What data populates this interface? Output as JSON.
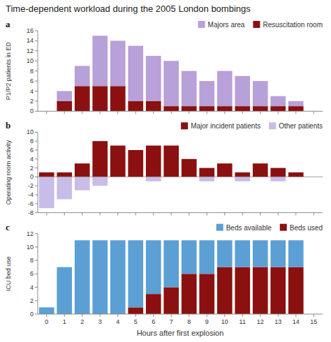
{
  "title": "Time-dependent workload during the 2005 London bombings",
  "chart_data": [
    {
      "type": "bar",
      "title": "a",
      "y_label": "P1/P2 patients in ED",
      "x": [
        1,
        2,
        3,
        4,
        5,
        6,
        7,
        8,
        9,
        10,
        11,
        12,
        13,
        14
      ],
      "series": [
        {
          "name": "Majors area",
          "color": "#b8a0d8",
          "values": [
            2,
            4,
            10,
            9,
            11,
            9,
            9,
            7,
            5,
            7,
            6,
            5,
            2,
            1
          ]
        },
        {
          "name": "Resuscitation room",
          "color": "#8b1010",
          "values": [
            2,
            5,
            5,
            5,
            2,
            2,
            1,
            1,
            1,
            1,
            1,
            1,
            1,
            1
          ]
        }
      ],
      "stacked": true,
      "xlim": [
        -0.5,
        15.5
      ],
      "xticks": [
        0,
        1,
        2,
        3,
        4,
        5,
        6,
        7,
        8,
        9,
        10,
        11,
        12,
        13,
        14,
        15
      ],
      "ylim": [
        0,
        16
      ],
      "yticks": [
        0,
        2,
        4,
        6,
        8,
        10,
        12,
        14,
        16
      ],
      "grid": false,
      "legend": "upper right",
      "tick_labels": "y"
    },
    {
      "type": "bar",
      "title": "b",
      "y_label": "Operating room activity",
      "x": [
        0,
        1,
        2,
        3,
        4,
        5,
        6,
        7,
        8,
        9,
        10,
        11,
        12,
        13,
        14
      ],
      "series": [
        {
          "name": "Major incident patients",
          "color": "#8b1010",
          "values": [
            1,
            1,
            3,
            8,
            7,
            6,
            7,
            7,
            4,
            2,
            3,
            1,
            3,
            2,
            1
          ]
        },
        {
          "name": "Other patients",
          "color": "#c8bce8",
          "values": [
            -7,
            -5,
            -3,
            -2,
            0,
            0,
            -1,
            0,
            0,
            -1,
            0,
            -1,
            0,
            -1,
            0
          ]
        }
      ],
      "stacked": false,
      "xlim": [
        -0.5,
        15.5
      ],
      "xticks": [
        0,
        1,
        2,
        3,
        4,
        5,
        6,
        7,
        8,
        9,
        10,
        11,
        12,
        13,
        14,
        15
      ],
      "ylim": [
        -8,
        10
      ],
      "yticks": [
        -8,
        -6,
        -4,
        -2,
        0,
        2,
        4,
        6,
        8,
        10
      ],
      "grid": false,
      "legend": "upper right",
      "tick_labels": "y"
    },
    {
      "type": "bar",
      "title": "c",
      "y_label": "ICU bed use",
      "x_label": "Hours after first explosion",
      "x": [
        0,
        1,
        2,
        3,
        4,
        5,
        6,
        7,
        8,
        9,
        10,
        11,
        12,
        13,
        14
      ],
      "series": [
        {
          "name": "Beds available",
          "color": "#5b9fd4",
          "values": [
            1,
            7,
            11,
            11,
            11,
            10,
            8,
            7,
            5,
            5,
            4,
            4,
            4,
            4,
            4
          ]
        },
        {
          "name": "Beds used",
          "color": "#8b1010",
          "values": [
            0,
            0,
            0,
            0,
            0,
            1,
            3,
            4,
            6,
            6,
            7,
            7,
            7,
            7,
            7
          ]
        }
      ],
      "stacked": true,
      "xlim": [
        -0.5,
        15.5
      ],
      "xticks": [
        0,
        1,
        2,
        3,
        4,
        5,
        6,
        7,
        8,
        9,
        10,
        11,
        12,
        13,
        14,
        15
      ],
      "ylim": [
        0,
        12
      ],
      "yticks": [
        0,
        2,
        4,
        6,
        8,
        10,
        12
      ],
      "grid": false,
      "legend": "upper right"
    }
  ]
}
